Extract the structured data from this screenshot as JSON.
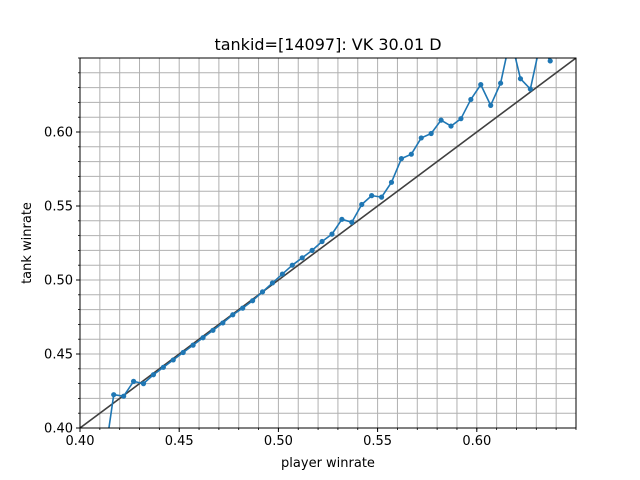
{
  "chart_data": {
    "type": "line",
    "title": "tankid=[14097]: VK 30.01 D",
    "xlabel": "player winrate",
    "ylabel": "tank winrate",
    "xlim": [
      0.4,
      0.65
    ],
    "ylim": [
      0.4,
      0.65
    ],
    "x_major_ticks": [
      0.4,
      0.45,
      0.5,
      0.55,
      0.6
    ],
    "x_tick_labels": [
      "0.40",
      "0.45",
      "0.50",
      "0.55",
      "0.60"
    ],
    "y_major_ticks": [
      0.4,
      0.45,
      0.5,
      0.55,
      0.6
    ],
    "y_tick_labels": [
      "0.40",
      "0.45",
      "0.50",
      "0.55",
      "0.60"
    ],
    "minor_step": 0.01,
    "grid": true,
    "series": [
      {
        "color": "#1f77b4",
        "marker": "circle",
        "x": [
          0.412,
          0.417,
          0.422,
          0.427,
          0.432,
          0.437,
          0.442,
          0.447,
          0.452,
          0.457,
          0.462,
          0.467,
          0.472,
          0.477,
          0.482,
          0.487,
          0.492,
          0.497,
          0.502,
          0.507,
          0.512,
          0.517,
          0.522,
          0.527,
          0.532,
          0.537,
          0.542,
          0.547,
          0.552,
          0.557,
          0.562,
          0.567,
          0.572,
          0.577,
          0.582,
          0.587,
          0.592,
          0.597,
          0.602,
          0.607,
          0.612,
          0.617,
          0.622,
          0.627,
          0.632,
          0.637
        ],
        "y": [
          0.376,
          0.4225,
          0.4215,
          0.4315,
          0.43,
          0.436,
          0.441,
          0.446,
          0.451,
          0.456,
          0.461,
          0.466,
          0.471,
          0.4765,
          0.481,
          0.486,
          0.492,
          0.498,
          0.504,
          0.51,
          0.515,
          0.52,
          0.526,
          0.531,
          0.541,
          0.539,
          0.551,
          0.557,
          0.556,
          0.566,
          0.582,
          0.585,
          0.596,
          0.599,
          0.608,
          0.604,
          0.609,
          0.622,
          0.632,
          0.618,
          0.633,
          0.664,
          0.636,
          0.629,
          0.66,
          0.648
        ]
      },
      {
        "color": "#404040",
        "style": "reference line y = x",
        "x": [
          0.4,
          0.65
        ],
        "y": [
          0.4,
          0.65
        ]
      }
    ]
  }
}
